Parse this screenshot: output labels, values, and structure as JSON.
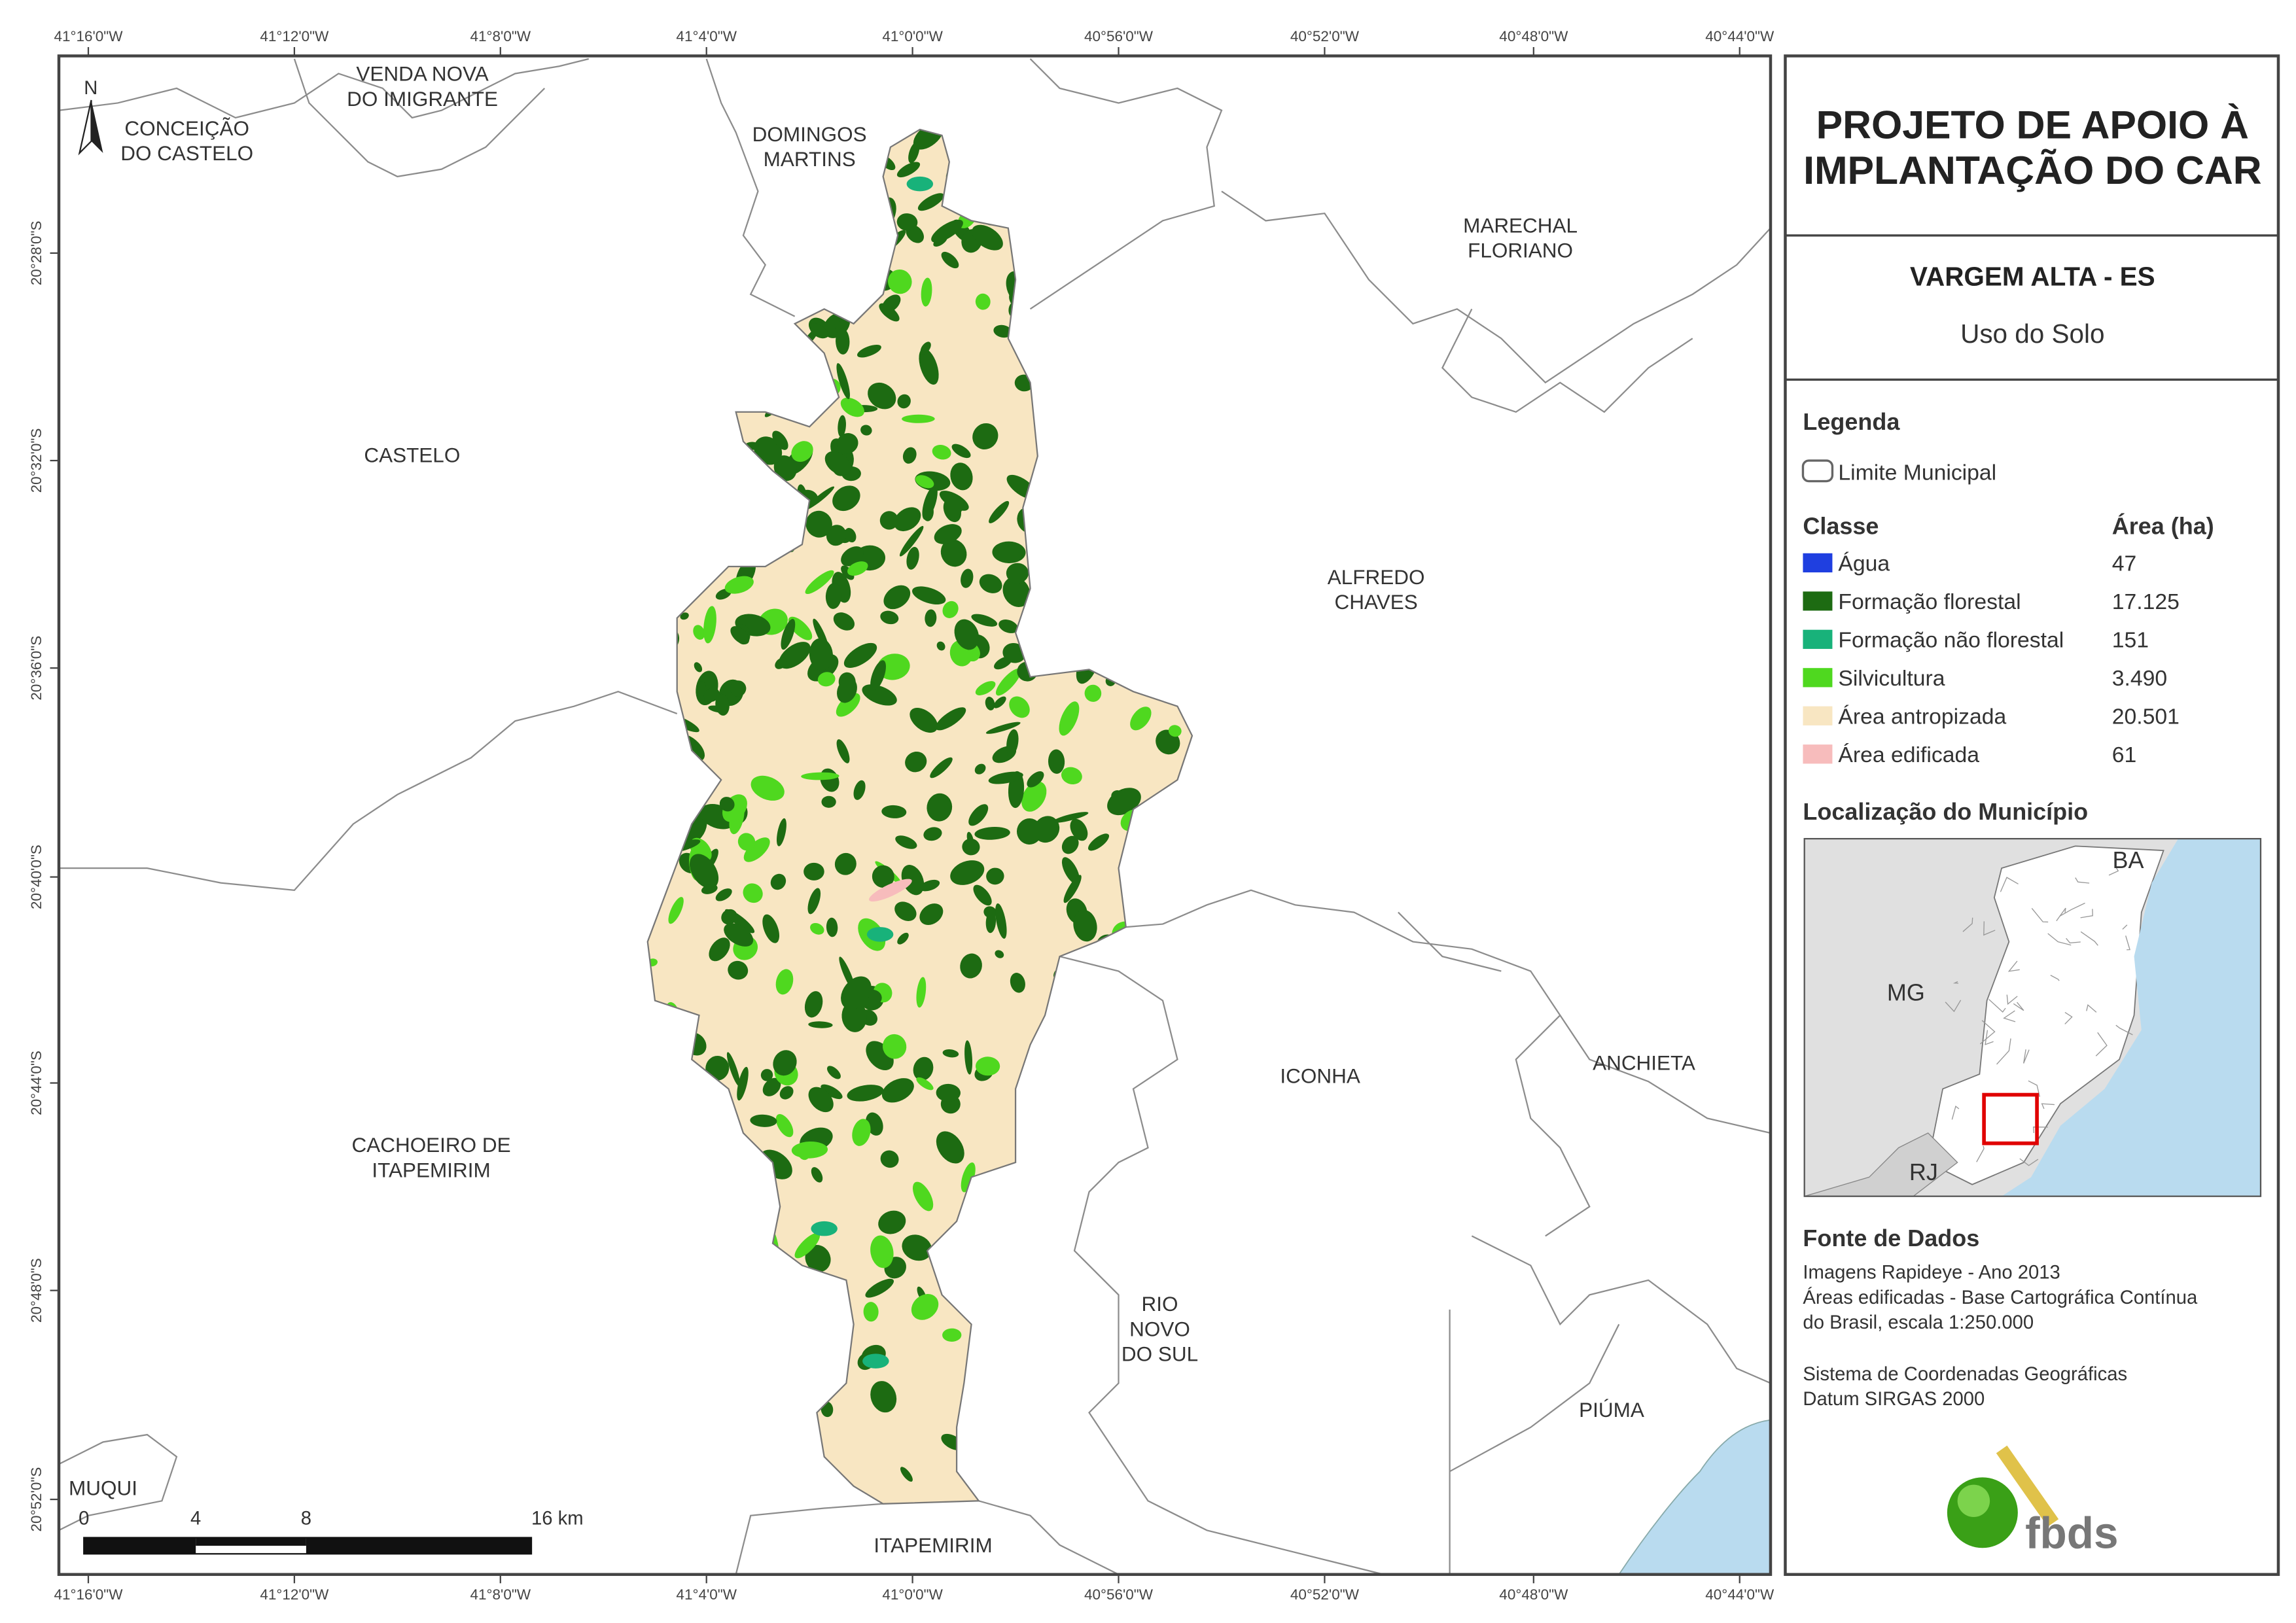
{
  "map": {
    "title_lines": [
      "PROJETO DE APOIO À",
      "IMPLANTAÇÃO DO CAR"
    ],
    "municipality": "VARGEM ALTA - ES",
    "theme": "Uso do Solo",
    "legend": {
      "heading": "Legenda",
      "boundary": "Limite Municipal",
      "class_heading": "Classe",
      "area_heading": "Área (ha)",
      "classes": [
        {
          "name": "Água",
          "area": "47",
          "color": "#1f3fe0"
        },
        {
          "name": "Formação florestal",
          "area": "17.125",
          "color": "#1d6b12"
        },
        {
          "name": "Formação não florestal",
          "area": "151",
          "color": "#18b27a"
        },
        {
          "name": "Silvicultura",
          "area": "3.490",
          "color": "#4fd81f"
        },
        {
          "name": "Área antropizada",
          "area": "20.501",
          "color": "#f8e6c2"
        },
        {
          "name": "Área edificada",
          "area": "61",
          "color": "#f7bcbc"
        }
      ]
    },
    "location": {
      "heading": "Localização do Município",
      "labels": [
        "BA",
        "MG",
        "RJ"
      ]
    },
    "sources": {
      "heading": "Fonte de Dados",
      "lines": [
        "Imagens Rapideye - Ano 2013",
        "Áreas edificadas - Base Cartográfica Contínua",
        "do Brasil, escala 1:250.000"
      ],
      "system_lines": [
        "Sistema de Coordenadas Geográficas",
        "Datum SIRGAS 2000"
      ]
    },
    "longitude_labels": [
      "41°16'0\"W",
      "41°12'0\"W",
      "41°8'0\"W",
      "41°4'0\"W",
      "41°0'0\"W",
      "40°56'0\"W",
      "40°52'0\"W",
      "40°48'0\"W",
      "40°44'0\"W"
    ],
    "latitude_labels": [
      "20°28'0\"S",
      "20°32'0\"S",
      "20°36'0\"S",
      "20°40'0\"S",
      "20°44'0\"S",
      "20°48'0\"S",
      "20°52'0\"S"
    ],
    "places": [
      [
        "VENDA NOVA",
        "DO IMIGRANTE"
      ],
      [
        "CONCEIÇÃO",
        "DO CASTELO"
      ],
      [
        "DOMINGOS",
        "MARTINS"
      ],
      [
        "MARECHAL",
        "FLORIANO"
      ],
      [
        "CASTELO"
      ],
      [
        "ALFREDO",
        "CHAVES"
      ],
      [
        "ICONHA"
      ],
      [
        "ANCHIETA"
      ],
      [
        "CACHOEIRO DE",
        "ITAPEMIRIM"
      ],
      [
        "RIO",
        "NOVO",
        "DO SUL"
      ],
      [
        "PIÚMA"
      ],
      [
        "MUQUI"
      ],
      [
        "ITAPEMIRIM"
      ]
    ],
    "scale_labels": [
      "0",
      "4",
      "8",
      "16 km"
    ],
    "north": "N",
    "logo": "fbds"
  }
}
